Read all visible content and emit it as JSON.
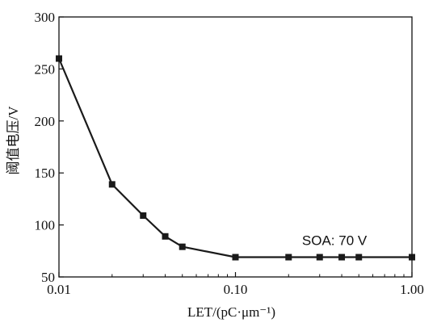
{
  "chart_data": {
    "type": "line",
    "title": "",
    "xlabel": "LET/(pC·μm⁻¹)",
    "ylabel": "阈值电压/V",
    "x_scale": "log",
    "xlim": [
      0.01,
      1.0
    ],
    "ylim": [
      50,
      300
    ],
    "x_ticks": [
      0.01,
      0.1,
      1.0
    ],
    "x_tick_labels": [
      "0.01",
      "0.10",
      "1.00"
    ],
    "y_ticks": [
      50,
      100,
      150,
      200,
      250,
      300
    ],
    "y_tick_labels": [
      "50",
      "100",
      "150",
      "200",
      "250",
      "300"
    ],
    "grid": false,
    "marker": "square",
    "series": [
      {
        "x": [
          0.01,
          0.02,
          0.03,
          0.04,
          0.05,
          0.1,
          0.2,
          0.3,
          0.4,
          0.5,
          1.0
        ],
        "y": [
          260,
          139,
          109,
          89,
          79,
          69,
          69,
          69,
          69,
          69,
          69
        ]
      }
    ],
    "annotations": [
      {
        "text": "SOA: 70 V",
        "x": 0.5,
        "y": 76
      }
    ],
    "colors": {
      "line": "#1a1a1a",
      "marker": "#1a1a1a",
      "axis": "#111111"
    }
  }
}
